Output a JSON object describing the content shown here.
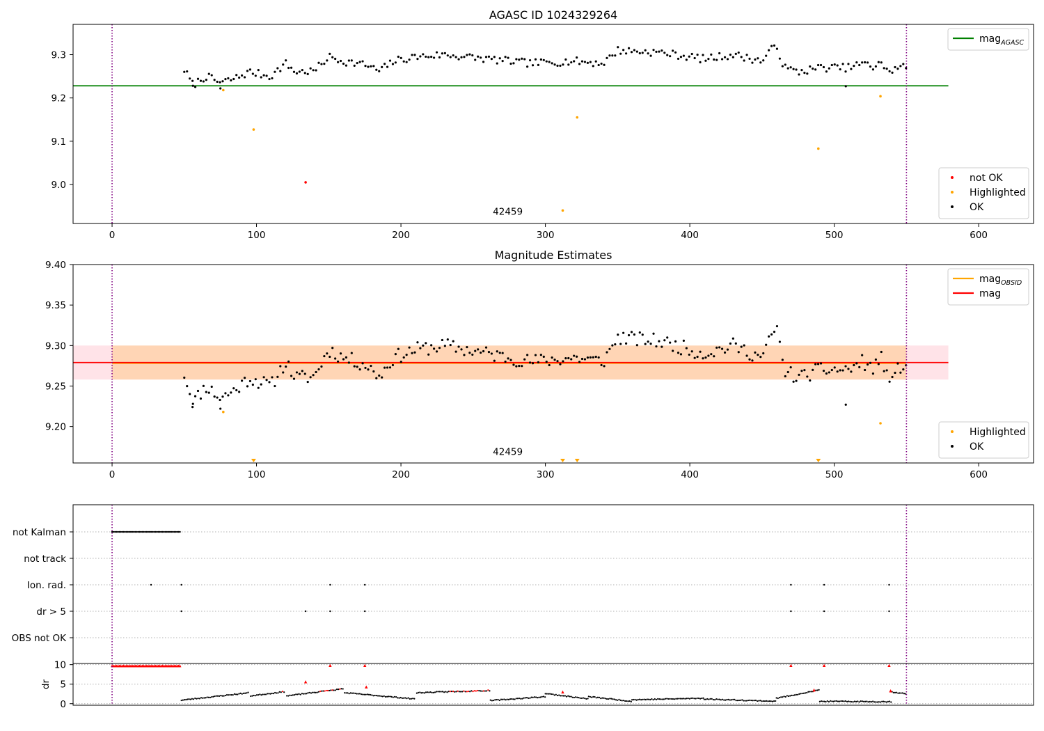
{
  "chart_data": [
    {
      "type": "scatter",
      "title": "AGASC ID 1024329264",
      "xlabel": "",
      "ylabel": "",
      "xlim": [
        -27,
        638
      ],
      "ylim": [
        8.91,
        9.37
      ],
      "xticks": [
        0,
        100,
        200,
        300,
        400,
        500,
        600
      ],
      "yticks": [
        9.0,
        9.1,
        9.2,
        9.3
      ],
      "ytick_labels": [
        "9.0",
        "9.1",
        "9.2",
        "9.3"
      ],
      "grid": false,
      "vlines": {
        "x": [
          0,
          550
        ],
        "color": "#800080",
        "style": "dotted"
      },
      "hlines": [
        {
          "name": "mag",
          "sub": "AGASC",
          "y": 9.228,
          "x_range": [
            -27,
            579
          ],
          "color": "#008000"
        }
      ],
      "annotation": {
        "text": "42459",
        "x": 274,
        "y": 8.93
      },
      "series": [
        {
          "name": "not OK",
          "color": "#ff0000",
          "points": [
            [
              134,
              9.005
            ]
          ]
        },
        {
          "name": "Highlighted",
          "color": "#ffa500",
          "points": [
            [
              77,
              9.218
            ],
            [
              98,
              9.127
            ],
            [
              312,
              8.94
            ],
            [
              322,
              9.155
            ],
            [
              489,
              9.083
            ],
            [
              532,
              9.204
            ]
          ]
        },
        {
          "name": "OK",
          "color": "#000000",
          "profile": [
            [
              50,
              9.265
            ],
            [
              56,
              9.23
            ],
            [
              65,
              9.25
            ],
            [
              75,
              9.235
            ],
            [
              85,
              9.245
            ],
            [
              95,
              9.26
            ],
            [
              110,
              9.25
            ],
            [
              120,
              9.28
            ],
            [
              127,
              9.26
            ],
            [
              140,
              9.262
            ],
            [
              150,
              9.295
            ],
            [
              160,
              9.285
            ],
            [
              175,
              9.277
            ],
            [
              185,
              9.262
            ],
            [
              195,
              9.285
            ],
            [
              210,
              9.295
            ],
            [
              230,
              9.3
            ],
            [
              260,
              9.29
            ],
            [
              290,
              9.28
            ],
            [
              320,
              9.285
            ],
            [
              340,
              9.28
            ],
            [
              350,
              9.31
            ],
            [
              380,
              9.305
            ],
            [
              410,
              9.29
            ],
            [
              430,
              9.3
            ],
            [
              450,
              9.285
            ],
            [
              460,
              9.325
            ],
            [
              465,
              9.27
            ],
            [
              475,
              9.26
            ],
            [
              490,
              9.27
            ],
            [
              510,
              9.27
            ],
            [
              520,
              9.28
            ],
            [
              527,
              9.27
            ],
            [
              532,
              9.29
            ],
            [
              535,
              9.26
            ],
            [
              550,
              9.275
            ]
          ],
          "step": 1.9,
          "noise": 0.009,
          "seed": 7,
          "extra_points": [
            [
              508,
              9.227
            ],
            [
              56,
              9.228
            ],
            [
              75,
              9.222
            ]
          ]
        }
      ],
      "legends": [
        {
          "placement": "upper-right",
          "entries": [
            {
              "label": "mag",
              "sub": "AGASC",
              "kind": "line",
              "color": "#008000"
            }
          ]
        },
        {
          "placement": "lower-right",
          "entries": [
            {
              "label": "not OK",
              "kind": "dot",
              "color": "#ff0000"
            },
            {
              "label": "Highlighted",
              "kind": "dot",
              "color": "#ffa500"
            },
            {
              "label": "OK",
              "kind": "dot",
              "color": "#000000"
            }
          ]
        }
      ]
    },
    {
      "type": "scatter",
      "title": "Magnitude Estimates",
      "xlabel": "",
      "ylabel": "",
      "xlim": [
        -27,
        638
      ],
      "ylim": [
        9.155,
        9.4
      ],
      "xticks": [
        0,
        100,
        200,
        300,
        400,
        500,
        600
      ],
      "yticks": [
        9.2,
        9.25,
        9.3,
        9.35,
        9.4
      ],
      "ytick_labels": [
        "9.20",
        "9.25",
        "9.30",
        "9.35",
        "9.40"
      ],
      "grid": false,
      "vlines": {
        "x": [
          0,
          550
        ],
        "color": "#800080",
        "style": "dotted"
      },
      "bands": [
        {
          "y_range": [
            9.258,
            9.3
          ],
          "x_range": [
            -27,
            579
          ],
          "color": "#ffc0cb",
          "opacity": 0.45
        },
        {
          "y_range": [
            9.258,
            9.3
          ],
          "x_range": [
            0,
            550
          ],
          "color": "#ffa500",
          "opacity": 0.22
        }
      ],
      "hlines": [
        {
          "name": "mag",
          "sub": "OBSID",
          "y": 9.2785,
          "x_range": [
            0,
            550
          ],
          "color": "#ffa500",
          "width": 2.5
        },
        {
          "name": "mag",
          "y": 9.279,
          "x_range": [
            -27,
            579
          ],
          "color": "#ff0000",
          "width": 1.8
        }
      ],
      "annotation": {
        "text": "42459",
        "x": 274,
        "y": 9.165
      },
      "series": [
        {
          "name": "Highlighted",
          "color": "#ffa500",
          "points": [
            [
              77,
              9.218
            ],
            [
              532,
              9.204
            ]
          ],
          "offscale_markers": [
            98,
            312,
            322,
            489
          ]
        },
        {
          "name": "OK",
          "color": "#000000",
          "profile": [
            [
              50,
              9.265
            ],
            [
              56,
              9.23
            ],
            [
              65,
              9.25
            ],
            [
              75,
              9.235
            ],
            [
              85,
              9.245
            ],
            [
              95,
              9.26
            ],
            [
              110,
              9.25
            ],
            [
              120,
              9.28
            ],
            [
              127,
              9.26
            ],
            [
              140,
              9.262
            ],
            [
              150,
              9.295
            ],
            [
              160,
              9.285
            ],
            [
              175,
              9.277
            ],
            [
              185,
              9.262
            ],
            [
              195,
              9.285
            ],
            [
              210,
              9.295
            ],
            [
              230,
              9.3
            ],
            [
              260,
              9.29
            ],
            [
              290,
              9.28
            ],
            [
              320,
              9.285
            ],
            [
              340,
              9.28
            ],
            [
              350,
              9.31
            ],
            [
              380,
              9.305
            ],
            [
              410,
              9.29
            ],
            [
              430,
              9.3
            ],
            [
              450,
              9.285
            ],
            [
              460,
              9.325
            ],
            [
              465,
              9.27
            ],
            [
              475,
              9.26
            ],
            [
              490,
              9.27
            ],
            [
              510,
              9.27
            ],
            [
              520,
              9.28
            ],
            [
              527,
              9.27
            ],
            [
              532,
              9.29
            ],
            [
              535,
              9.26
            ],
            [
              550,
              9.275
            ]
          ],
          "step": 1.9,
          "noise": 0.009,
          "seed": 11,
          "extra_points": [
            [
              508,
              9.227
            ],
            [
              56,
              9.228
            ],
            [
              75,
              9.222
            ]
          ]
        }
      ],
      "legends": [
        {
          "placement": "upper-right",
          "entries": [
            {
              "label": "mag",
              "sub": "OBSID",
              "kind": "line",
              "color": "#ffa500"
            },
            {
              "label": "mag",
              "kind": "line",
              "color": "#ff0000"
            }
          ]
        },
        {
          "placement": "lower-right",
          "entries": [
            {
              "label": "Highlighted",
              "kind": "dot",
              "color": "#ffa500"
            },
            {
              "label": "OK",
              "kind": "dot",
              "color": "#000000"
            }
          ]
        }
      ]
    },
    {
      "type": "scatter",
      "title": "",
      "xlabel": "",
      "ylabel": "",
      "xlim": [
        -27,
        638
      ],
      "categories": [
        "not Kalman",
        "not track",
        "Ion. rad.",
        "dr > 5",
        "OBS not OK"
      ],
      "grid": true,
      "vlines": {
        "x": [
          0,
          550
        ],
        "color": "#800080",
        "style": "dotted"
      },
      "flags": {
        "not Kalman": {
          "x_range": [
            0,
            47
          ],
          "step": 1
        },
        "not track": {
          "x": []
        },
        "Ion. rad.": {
          "x": [
            27,
            48,
            151,
            175,
            470,
            493,
            538
          ]
        },
        "dr > 5": {
          "x": [
            48,
            134,
            151,
            175,
            470,
            493,
            538
          ]
        },
        "OBS not OK": {
          "x": []
        }
      }
    },
    {
      "type": "scatter",
      "title": "",
      "xlabel": "",
      "ylabel": "dr",
      "xlim": [
        -27,
        638
      ],
      "ylim": [
        -0.4,
        10.3
      ],
      "yticks": [
        0,
        5,
        10
      ],
      "ytick_labels": [
        "0",
        "5",
        "10"
      ],
      "grid": true,
      "vlines": {
        "x": [
          0,
          550
        ],
        "color": "#800080",
        "style": "dotted"
      },
      "series": [
        {
          "name": "dr",
          "color": "#000000",
          "threshold": 5,
          "gap": [
            48,
            262
          ],
          "segments": [
            [
              48,
              0.9,
              95,
              2.8
            ],
            [
              96,
              2.0,
              120,
              3.1
            ],
            [
              121,
              2.0,
              160,
              3.8
            ],
            [
              161,
              2.8,
              210,
              1.2
            ],
            [
              211,
              2.8,
              262,
              3.4
            ],
            [
              262,
              0.8,
              300,
              1.8
            ],
            [
              300,
              2.6,
              330,
              1.2
            ],
            [
              330,
              1.8,
              360,
              0.6
            ],
            [
              360,
              1.0,
              410,
              1.4
            ],
            [
              410,
              1.2,
              460,
              0.6
            ],
            [
              460,
              1.4,
              490,
              3.5
            ],
            [
              490,
              0.6,
              540,
              0.5
            ],
            [
              540,
              3.0,
              550,
              2.5
            ]
          ],
          "seed": 23
        },
        {
          "name": "dr high",
          "color": "#ff0000",
          "x_range": [
            0,
            47
          ],
          "y": 9.7,
          "points": [
            [
              151,
              9.8
            ],
            [
              175,
              9.8
            ],
            [
              470,
              9.8
            ],
            [
              493,
              9.8
            ],
            [
              538,
              9.8
            ],
            [
              134,
              5.6
            ],
            [
              176,
              4.3
            ],
            [
              312,
              3.0
            ],
            [
              486,
              3.5
            ],
            [
              539,
              3.3
            ]
          ]
        }
      ]
    }
  ]
}
